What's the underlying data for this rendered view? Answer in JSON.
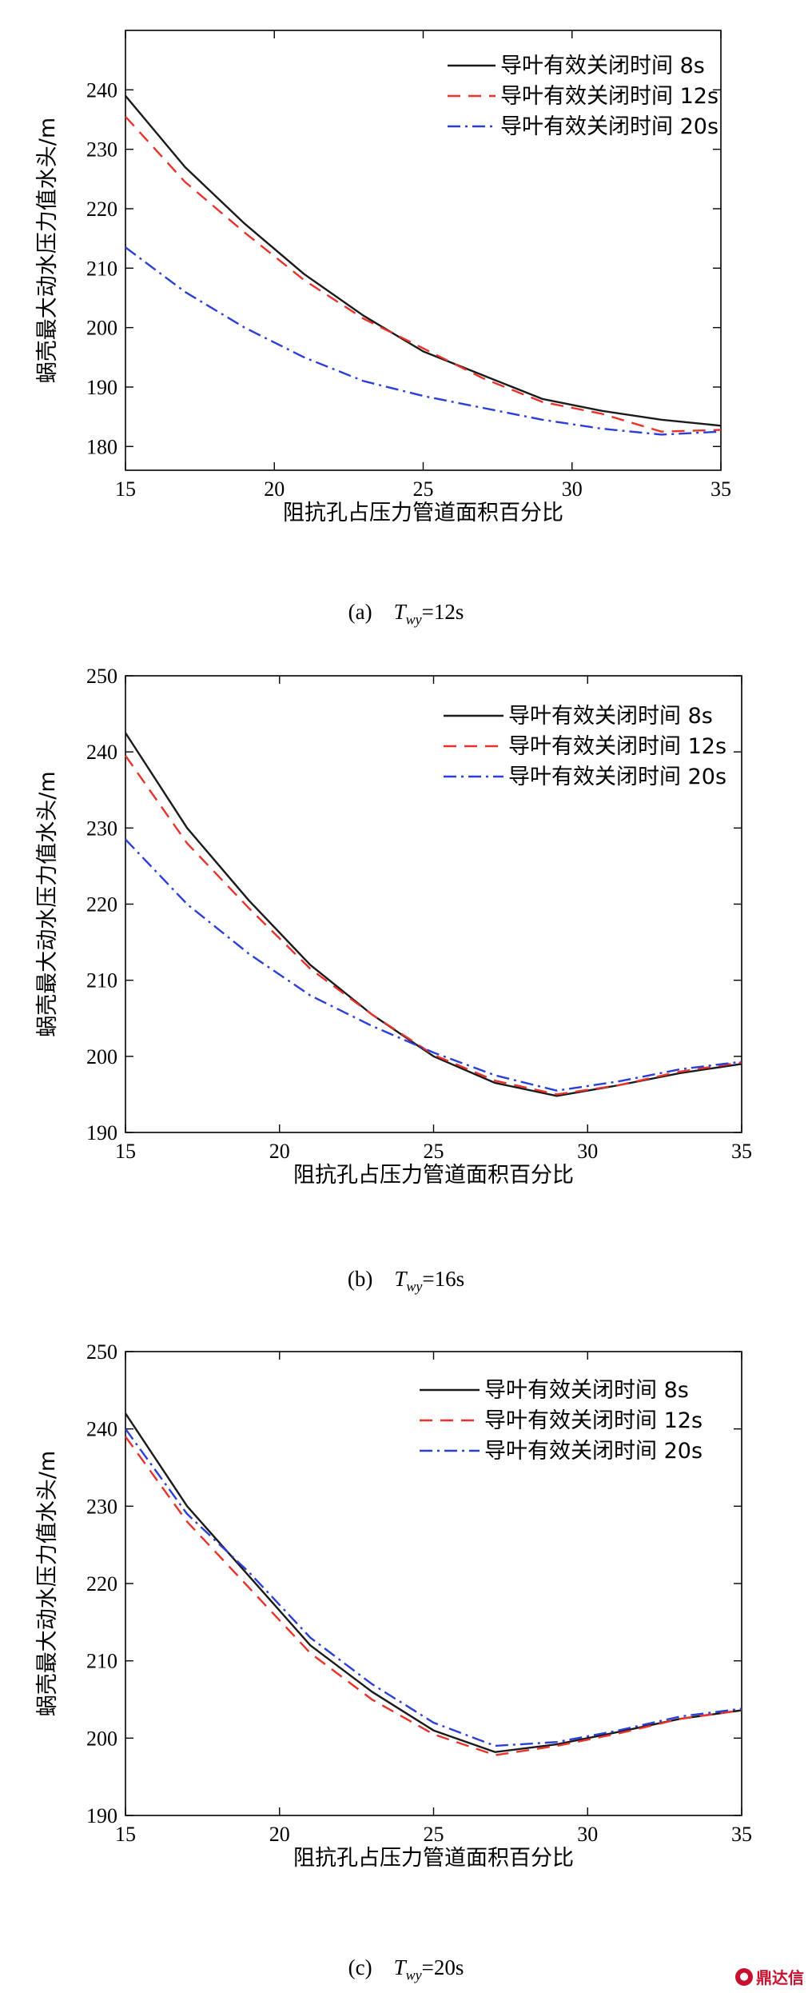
{
  "chart_data": [
    {
      "type": "line",
      "x": [
        15,
        17,
        19,
        21,
        23,
        25,
        27,
        29,
        31,
        33,
        35
      ],
      "xlim": [
        15,
        35
      ],
      "ylim": [
        176,
        250
      ],
      "xticks": [
        "15",
        "20",
        "25",
        "30",
        "35"
      ],
      "yticks": [
        "180",
        "190",
        "200",
        "210",
        "220",
        "230",
        "240"
      ],
      "xlabel": "阻抗孔占压力管道面积百分比",
      "ylabel": "蜗壳最大动水压力值水头/m",
      "legend_position": "top-right",
      "caption": {
        "label": "(a)",
        "T": "T",
        "sub": "wy",
        "value": "=12s"
      },
      "series": [
        {
          "name": "导叶有效关闭时间 8s",
          "color": "#1a1a1a",
          "dash": "solid",
          "values": [
            239,
            227,
            217.5,
            209,
            202,
            196,
            192,
            188,
            186,
            184.5,
            183.5
          ]
        },
        {
          "name": "导叶有效关闭时间 12s",
          "color": "#e8322b",
          "dash": "dashed",
          "values": [
            235.5,
            224.5,
            216,
            208,
            201.5,
            196.5,
            191.5,
            187.5,
            185.5,
            182.5,
            182.8
          ]
        },
        {
          "name": "导叶有效关闭时间 20s",
          "color": "#2b3fd6",
          "dash": "dashdot",
          "values": [
            213.5,
            206,
            200,
            195,
            191,
            188.5,
            186.5,
            184.5,
            183,
            182,
            182.5
          ]
        }
      ]
    },
    {
      "type": "line",
      "x": [
        15,
        17,
        19,
        21,
        23,
        25,
        27,
        29,
        31,
        33,
        35
      ],
      "xlim": [
        15,
        35
      ],
      "ylim": [
        190,
        250
      ],
      "xticks": [
        "15",
        "20",
        "25",
        "30",
        "35"
      ],
      "yticks": [
        "190",
        "200",
        "210",
        "220",
        "230",
        "240",
        "250"
      ],
      "xlabel": "阻抗孔占压力管道面积百分比",
      "ylabel": "蜗壳最大动水压力值水头/m",
      "legend_position": "top-right",
      "caption": {
        "label": "(b)",
        "T": "T",
        "sub": "wy",
        "value": "=16s"
      },
      "series": [
        {
          "name": "导叶有效关闭时间 8s",
          "color": "#1a1a1a",
          "dash": "solid",
          "values": [
            242.5,
            230,
            220.5,
            212,
            205.5,
            200,
            196.5,
            194.8,
            196.2,
            197.8,
            199
          ]
        },
        {
          "name": "导叶有效关闭时间 12s",
          "color": "#e8322b",
          "dash": "dashed",
          "values": [
            239.5,
            228,
            219.5,
            211.5,
            205.5,
            200.2,
            196.8,
            195,
            196.2,
            198,
            199.2
          ]
        },
        {
          "name": "导叶有效关闭时间 20s",
          "color": "#2b3fd6",
          "dash": "dashdot",
          "values": [
            228.5,
            220,
            213.5,
            208,
            204,
            200.5,
            197.5,
            195.5,
            196.7,
            198.3,
            199.3
          ]
        }
      ]
    },
    {
      "type": "line",
      "x": [
        15,
        17,
        19,
        21,
        23,
        25,
        27,
        29,
        31,
        33,
        35
      ],
      "xlim": [
        15,
        35
      ],
      "ylim": [
        190,
        250
      ],
      "xticks": [
        "15",
        "20",
        "25",
        "30",
        "35"
      ],
      "yticks": [
        "190",
        "200",
        "210",
        "220",
        "230",
        "240",
        "250"
      ],
      "xlabel": "阻抗孔占压力管道面积百分比",
      "ylabel": "蜗壳最大动水压力值水头/m",
      "legend_position": "top-right",
      "caption": {
        "label": "(c)",
        "T": "T",
        "sub": "wy",
        "value": "=20s"
      },
      "series": [
        {
          "name": "导叶有效关闭时间 8s",
          "color": "#1a1a1a",
          "dash": "solid",
          "values": [
            242,
            230,
            221,
            212,
            206,
            201,
            198.2,
            199.2,
            200.8,
            202.5,
            203.6
          ]
        },
        {
          "name": "导叶有效关闭时间 12s",
          "color": "#e8322b",
          "dash": "dashed",
          "values": [
            239,
            228,
            219.5,
            211,
            205,
            200.5,
            197.8,
            199,
            200.6,
            202.5,
            203.6
          ]
        },
        {
          "name": "导叶有效关闭时间 20s",
          "color": "#2b3fd6",
          "dash": "dashdot",
          "values": [
            240,
            229,
            221.5,
            213,
            207,
            202,
            199,
            199.5,
            201,
            202.8,
            203.8
          ]
        }
      ]
    }
  ],
  "watermark": {
    "text": "鼎达信"
  }
}
